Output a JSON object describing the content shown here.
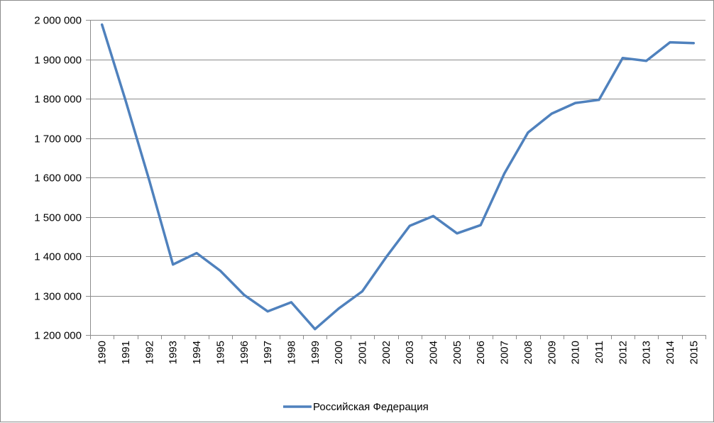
{
  "chart_data": {
    "type": "line",
    "title": "",
    "xlabel": "",
    "ylabel": "",
    "x": [
      "1990",
      "1991",
      "1992",
      "1993",
      "1994",
      "1995",
      "1996",
      "1997",
      "1998",
      "1999",
      "2000",
      "2001",
      "2002",
      "2003",
      "2004",
      "2005",
      "2006",
      "2007",
      "2008",
      "2009",
      "2010",
      "2011",
      "2012",
      "2013",
      "2014",
      "2015"
    ],
    "series": [
      {
        "name": "Российская Федерация",
        "color": "#4f81bd",
        "values": [
          1988000,
          1795000,
          1592000,
          1379000,
          1408000,
          1363000,
          1302000,
          1260000,
          1283000,
          1215000,
          1267000,
          1311000,
          1397000,
          1477000,
          1502000,
          1458000,
          1479000,
          1610000,
          1714000,
          1762000,
          1789000,
          1797000,
          1903000,
          1896000,
          1943000,
          1941000
        ]
      }
    ],
    "ylim": [
      1200000,
      2000000
    ],
    "y_ticks": [
      1200000,
      1300000,
      1400000,
      1500000,
      1600000,
      1700000,
      1800000,
      1900000,
      2000000
    ],
    "y_tick_labels": [
      "1 200 000",
      "1 300 000",
      "1 400 000",
      "1 500 000",
      "1 600 000",
      "1 700 000",
      "1 800 000",
      "1 900 000",
      "2 000 000"
    ],
    "grid": true,
    "legend_position": "bottom",
    "colors": {
      "gridline": "#8c8c8c",
      "axis": "#8c8c8c",
      "border": "#8c8c8c"
    }
  }
}
